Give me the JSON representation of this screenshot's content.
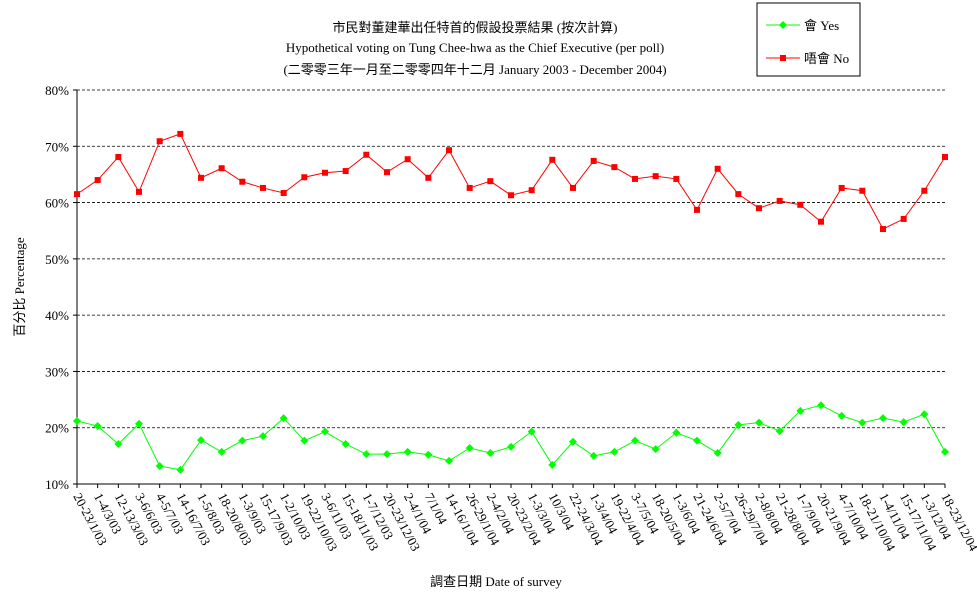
{
  "chart_data": {
    "type": "line",
    "title": "市民對董建華出任特首的假設投票結果 (按次計算)",
    "subtitle": "Hypothetical voting on Tung Chee-hwa as the Chief Executive (per poll)",
    "subtitle2": "(二零零三年一月至二零零四年十二月 January 2003 - December 2004)",
    "xlabel": "調查日期 Date of survey",
    "ylabel": "百分比 Percentage",
    "ylim": [
      10,
      80
    ],
    "yticks": [
      "10%",
      "20%",
      "30%",
      "40%",
      "50%",
      "60%",
      "70%",
      "80%"
    ],
    "grid": true,
    "legend": "top-right",
    "categories": [
      "20-23/1/03",
      "1-4/3/03",
      "12-13/3/03",
      "3-6/6/03",
      "4-5/7/03",
      "14-16/7/03",
      "1-5/8/03",
      "18-20/8/03",
      "1-3/9/03",
      "15-17/9/03",
      "1-2/10/03",
      "19-22/10/03",
      "3-6/11/03",
      "15-18/11/03",
      "1-7/12/03",
      "20-23/12/03",
      "2-4/1/04",
      "7/1/04",
      "14-16/1/04",
      "26-29/1/04",
      "2-4/2/04",
      "20-23/2/04",
      "1-3/3/04",
      "10/3/04",
      "22-24/3/04",
      "1-3/4/04",
      "19-22/4/04",
      "3-7/5/04",
      "18-20/5/04",
      "1-3/6/04",
      "21-24/6/04",
      "2-5/7/04",
      "26-29/7/04",
      "2-8/8/04",
      "21-28/8/04",
      "1-7/9/04",
      "20-21/9/04",
      "4-7/10/04",
      "18-21/10/04",
      "1-4/11/04",
      "15-17/11/04",
      "1-3/12/04",
      "18-23/12/04"
    ],
    "series": [
      {
        "name": "會 Yes",
        "color": "#00ff00",
        "marker": "diamond",
        "values": [
          21.2,
          20.3,
          17.1,
          20.7,
          13.2,
          12.5,
          17.8,
          15.7,
          17.7,
          18.5,
          21.7,
          17.7,
          19.3,
          17.1,
          15.3,
          15.3,
          15.7,
          15.2,
          14.1,
          16.4,
          15.5,
          16.6,
          19.3,
          13.4,
          17.5,
          15.0,
          15.7,
          17.7,
          16.2,
          19.1,
          17.7,
          15.5,
          20.5,
          20.9,
          19.4,
          23.0,
          24.0,
          22.1,
          20.9,
          21.7,
          21.0,
          22.4,
          15.7
        ]
      },
      {
        "name": "唔會 No",
        "color": "#ff0000",
        "marker": "square",
        "values": [
          61.5,
          64.0,
          68.1,
          61.9,
          70.9,
          72.2,
          64.4,
          66.1,
          63.7,
          62.6,
          61.7,
          64.5,
          65.3,
          65.6,
          68.5,
          65.4,
          67.7,
          64.4,
          69.3,
          62.6,
          63.8,
          61.3,
          62.2,
          67.6,
          62.6,
          67.4,
          66.3,
          64.2,
          64.7,
          64.2,
          58.7,
          66.0,
          61.5,
          59.0,
          60.3,
          59.6,
          56.6,
          62.6,
          62.1,
          55.3,
          57.1,
          62.1,
          68.1
        ]
      }
    ]
  }
}
